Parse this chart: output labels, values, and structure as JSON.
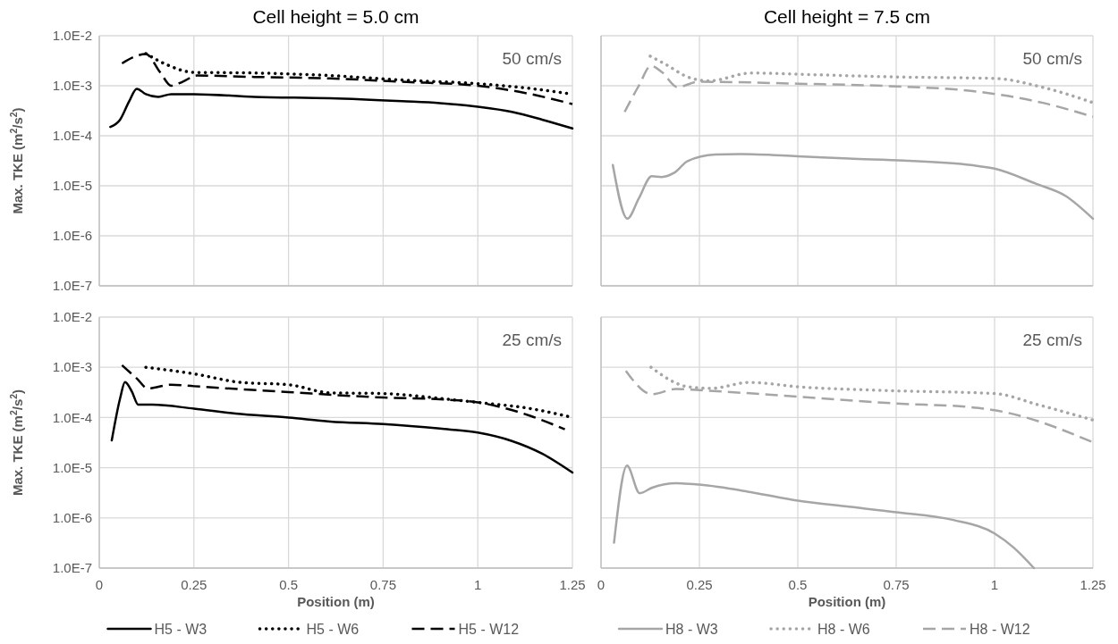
{
  "chart_data": [
    {
      "type": "line",
      "title": "Cell height = 5.0 cm",
      "ylabel": "Max. TKE (m$^{2}$/s$^{2}$)",
      "log": "y",
      "grid": true,
      "tick_labels": "y",
      "annotations": [
        "50 cm/s"
      ],
      "xlim": [
        0,
        1.25
      ],
      "xticks": [
        0,
        0.25,
        0.5,
        0.75,
        1,
        1.25
      ],
      "ylim": [
        1e-07,
        0.01
      ],
      "yticks": [
        {
          "value": 1e-07,
          "label": "1.0E-7"
        },
        {
          "value": 1e-06,
          "label": "1.0E-6"
        },
        {
          "value": 1e-05,
          "label": "1.0E-5"
        },
        {
          "value": 0.0001,
          "label": "1.0E-4"
        },
        {
          "value": 0.001,
          "label": "1.0E-3"
        },
        {
          "value": 0.01,
          "label": "1.0E-2"
        }
      ],
      "series": [
        {
          "color": "#000000",
          "line_style": "solid",
          "x": [
            0.029,
            0.055,
            0.079,
            0.099,
            0.123,
            0.156,
            0.19,
            0.25,
            0.41,
            0.61,
            0.8,
            0.9,
            1.0,
            1.09,
            1.17,
            1.25
          ],
          "values": [
            0.00015,
            0.00021,
            0.00049,
            0.00087,
            0.00068,
            0.0006,
            0.00068,
            0.00068,
            0.0006,
            0.00056,
            0.00049,
            0.00045,
            0.00038,
            0.0003,
            0.00021,
            0.00014
          ]
        },
        {
          "color": "#000000",
          "line_style": "dotted",
          "x": [
            0.123,
            0.18,
            0.25,
            0.41,
            0.61,
            0.8,
            1.0,
            1.14,
            1.25
          ],
          "values": [
            0.0044,
            0.0026,
            0.00185,
            0.0018,
            0.0016,
            0.0013,
            0.0011,
            0.00088,
            0.00068
          ]
        },
        {
          "color": "#000000",
          "line_style": "dashed",
          "x": [
            0.06,
            0.123,
            0.161,
            0.19,
            0.22,
            0.258,
            0.41,
            0.61,
            0.8,
            1.0,
            1.14,
            1.25
          ],
          "values": [
            0.0028,
            0.0043,
            0.00185,
            0.001,
            0.0012,
            0.0016,
            0.0015,
            0.0014,
            0.0012,
            0.001,
            0.00068,
            0.00043
          ]
        }
      ]
    },
    {
      "type": "line",
      "title": "Cell height = 7.5 cm",
      "log": "y",
      "grid": true,
      "tick_labels": false,
      "annotations": [
        "50 cm/s"
      ],
      "xlim": [
        0,
        1.25
      ],
      "xticks": [
        0,
        0.25,
        0.5,
        0.75,
        1,
        1.25
      ],
      "ylim": [
        1e-07,
        0.01
      ],
      "yticks": [
        1e-07,
        1e-06,
        1e-05,
        0.0001,
        0.001,
        0.01
      ],
      "series": [
        {
          "color": "#a6a6a6",
          "line_style": "solid",
          "x": [
            0.03,
            0.067,
            0.096,
            0.129,
            0.154,
            0.185,
            0.22,
            0.29,
            0.355,
            0.5,
            0.63,
            0.77,
            0.94,
            1.0,
            1.105,
            1.18,
            1.25
          ],
          "values": [
            2.6e-05,
            2.2e-06,
            5.6e-06,
            1.55e-05,
            1.5e-05,
            1.8e-05,
            3.1e-05,
            4.2e-05,
            4.3e-05,
            3.9e-05,
            3.5e-05,
            3.2e-05,
            2.6e-05,
            2.2e-05,
            1.1e-05,
            6.3e-06,
            2.2e-06
          ]
        },
        {
          "color": "#a6a6a6",
          "line_style": "dotted",
          "x": [
            0.125,
            0.167,
            0.22,
            0.274,
            0.382,
            0.5,
            0.75,
            1.0,
            1.12,
            1.25
          ],
          "values": [
            0.0039,
            0.0026,
            0.0015,
            0.00125,
            0.0018,
            0.0017,
            0.0015,
            0.0014,
            0.00094,
            0.00046
          ]
        },
        {
          "color": "#a6a6a6",
          "line_style": "dashed",
          "x": [
            0.06,
            0.096,
            0.127,
            0.154,
            0.194,
            0.248,
            0.5,
            0.75,
            0.94,
            1.12,
            1.25
          ],
          "values": [
            0.0003,
            0.001,
            0.0025,
            0.0019,
            0.00094,
            0.0012,
            0.0011,
            0.00097,
            0.00079,
            0.00046,
            0.00024
          ]
        }
      ]
    },
    {
      "type": "line",
      "xlabel": "Position (m)",
      "ylabel": "Max. TKE (m$^{2}$/s$^{2}$)",
      "log": "y",
      "grid": true,
      "legend": "bottom",
      "annotations": [
        "25 cm/s"
      ],
      "xlim": [
        0,
        1.25
      ],
      "xticks": [
        0,
        0.25,
        0.5,
        0.75,
        1,
        1.25
      ],
      "ylim": [
        1e-07,
        0.01
      ],
      "yticks": [
        {
          "value": 1e-07,
          "label": "1.0E-7"
        },
        {
          "value": 1e-06,
          "label": "1.0E-6"
        },
        {
          "value": 1e-05,
          "label": "1.0E-5"
        },
        {
          "value": 0.0001,
          "label": "1.0E-4"
        },
        {
          "value": 0.001,
          "label": "1.0E-3"
        },
        {
          "value": 0.01,
          "label": "1.0E-2"
        }
      ],
      "series": [
        {
          "name": "H5 - W3",
          "color": "#000000",
          "line_style": "solid",
          "x": [
            0.033,
            0.055,
            0.068,
            0.086,
            0.103,
            0.14,
            0.25,
            0.36,
            0.5,
            0.61,
            0.75,
            0.9,
            1.0,
            1.09,
            1.17,
            1.25
          ],
          "values": [
            3.5e-05,
            0.00024,
            0.00051,
            0.00033,
            0.00018,
            0.00018,
            0.00015,
            0.00012,
            0.0001,
            8.3e-05,
            7.4e-05,
            6e-05,
            5e-05,
            3.4e-05,
            1.9e-05,
            8e-06
          ]
        },
        {
          "name": "H5 - W6",
          "color": "#000000",
          "line_style": "dotted",
          "x": [
            0.123,
            0.25,
            0.374,
            0.5,
            0.61,
            0.75,
            0.9,
            1.0,
            1.14,
            1.25
          ],
          "values": [
            0.001,
            0.00074,
            0.0005,
            0.00045,
            0.00031,
            0.0003,
            0.00024,
            0.0002,
            0.00015,
            0.0001
          ]
        },
        {
          "name": "H5 - W12",
          "color": "#000000",
          "line_style": "dashed",
          "x": [
            0.06,
            0.1,
            0.128,
            0.19,
            0.25,
            0.5,
            0.75,
            0.9,
            1.0,
            1.14,
            1.23
          ],
          "values": [
            0.0011,
            0.00059,
            0.00038,
            0.00045,
            0.00042,
            0.00032,
            0.00025,
            0.00023,
            0.0002,
            0.000107,
            5.8e-05
          ]
        }
      ]
    },
    {
      "type": "line",
      "xlabel": "Position (m)",
      "log": "y",
      "grid": true,
      "tick_labels": "x",
      "legend": "bottom",
      "annotations": [
        "25 cm/s"
      ],
      "xlim": [
        0,
        1.25
      ],
      "xticks": [
        0,
        0.25,
        0.5,
        0.75,
        1,
        1.25
      ],
      "ylim": [
        1e-07,
        0.01
      ],
      "yticks": [
        1e-07,
        1e-06,
        1e-05,
        0.0001,
        0.001,
        0.01
      ],
      "series": [
        {
          "name": "H8 - W3",
          "color": "#a6a6a6",
          "line_style": "solid",
          "x": [
            0.033,
            0.066,
            0.098,
            0.13,
            0.19,
            0.25,
            0.386,
            0.5,
            0.62,
            0.75,
            0.895,
            1.0,
            1.05,
            1.1
          ],
          "values": [
            3.2e-07,
            1.1e-05,
            3.1e-06,
            4e-06,
            4.9e-06,
            4.6e-06,
            3.2e-06,
            2.2e-06,
            1.7e-06,
            1.3e-06,
            9.1e-07,
            4.9e-07,
            2.5e-07,
            1e-07
          ]
        },
        {
          "name": "H8 - W6",
          "color": "#a6a6a6",
          "line_style": "dotted",
          "x": [
            0.127,
            0.22,
            0.28,
            0.377,
            0.5,
            0.75,
            1.0,
            1.11,
            1.25
          ],
          "values": [
            0.001,
            0.00041,
            0.00038,
            0.0005,
            0.00041,
            0.00034,
            0.0003,
            0.00018,
            8.9e-05
          ]
        },
        {
          "name": "H8 - W12",
          "color": "#a6a6a6",
          "line_style": "dashed",
          "x": [
            0.063,
            0.13,
            0.19,
            0.25,
            0.5,
            0.75,
            0.94,
            1.0,
            1.07,
            1.25
          ],
          "values": [
            0.00085,
            0.00029,
            0.00037,
            0.00035,
            0.00026,
            0.00019,
            0.00016,
            0.00014,
            0.000105,
            3.2e-05
          ]
        }
      ]
    }
  ]
}
